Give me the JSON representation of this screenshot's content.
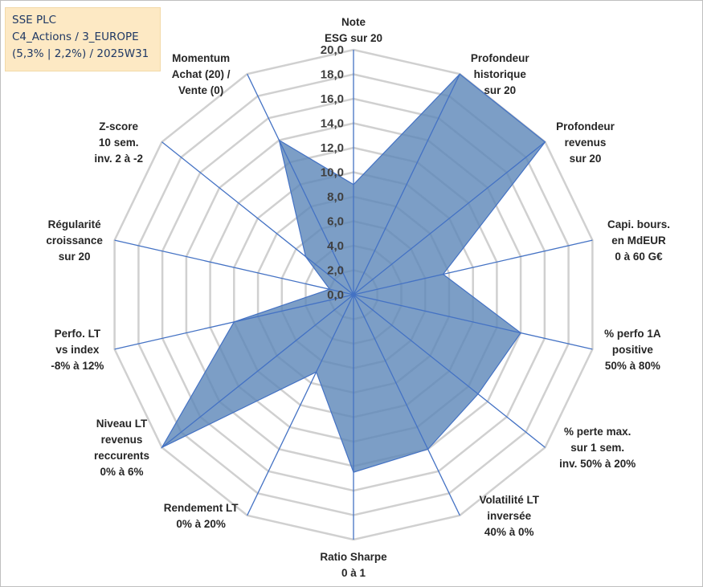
{
  "info_box": {
    "line1": "SSE PLC",
    "line2": "C4_Actions / 3_EUROPE",
    "line3": "(5,3% | 2,2%) / 2025W31"
  },
  "chart_data": {
    "type": "radar",
    "rmin": 0,
    "rmax": 20,
    "tick_step": 2,
    "tick_labels": [
      "0,0",
      "2,0",
      "4,0",
      "6,0",
      "8,0",
      "10,0",
      "12,0",
      "14,0",
      "16,0",
      "18,0",
      "20,0"
    ],
    "grid": true,
    "legend": "none",
    "fill_color": "#5b86b8",
    "line_color": "#4472c4",
    "grid_color": "#d0d0d0",
    "axes": [
      {
        "label": [
          "Note",
          "ESG sur 20"
        ],
        "value": 9.0
      },
      {
        "label": [
          "Profondeur",
          "historique",
          "sur 20"
        ],
        "value": 20.0
      },
      {
        "label": [
          "Profondeur",
          "revenus",
          "sur 20"
        ],
        "value": 20.0
      },
      {
        "label": [
          "Capi. bours.",
          "en MdEUR",
          "0 à 60 G€"
        ],
        "value": 7.5
      },
      {
        "label": [
          "% perfo 1A",
          "positive",
          "50% à 80%"
        ],
        "value": 14.0
      },
      {
        "label": [
          "% perte max.",
          "sur 1 sem.",
          "inv. 50% à 20%"
        ],
        "value": 13.0
      },
      {
        "label": [
          "Volatilité LT",
          "inversée",
          "40% à 0%"
        ],
        "value": 14.0
      },
      {
        "label": [
          "Ratio Sharpe",
          "0 à 1"
        ],
        "value": 14.5
      },
      {
        "label": [
          "Rendement LT",
          "0% à 20%"
        ],
        "value": 7.0
      },
      {
        "label": [
          "Niveau LT",
          "revenus",
          "reccurents",
          "0% à 6%"
        ],
        "value": 20.0
      },
      {
        "label": [
          "Perfo. LT",
          "vs index",
          "-8% à 12%"
        ],
        "value": 10.0
      },
      {
        "label": [
          "Régularité",
          "croissance",
          "sur 20"
        ],
        "value": 2.0
      },
      {
        "label": [
          "Z-score",
          "10 sem.",
          "inv. 2 à -2"
        ],
        "value": 5.0
      },
      {
        "label": [
          "Momentum",
          "Achat (20) /",
          "Vente (0)"
        ],
        "value": 14.0
      }
    ]
  }
}
